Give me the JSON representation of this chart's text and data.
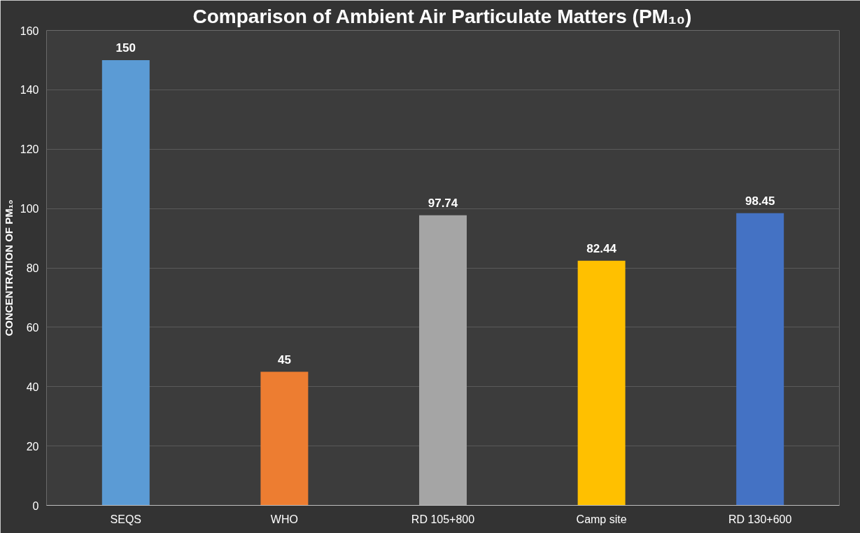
{
  "chart_data": {
    "type": "bar",
    "title": "Comparison of Ambient Air Particulate Matters (PM₁₀)",
    "ylabel": "CONCENTRATION OF PM₁₀",
    "categories": [
      "SEQS",
      "WHO",
      "RD 105+800",
      "Camp site",
      "RD 130+600"
    ],
    "values": [
      150,
      45,
      97.74,
      82.44,
      98.45
    ],
    "colors": [
      "#5b9bd5",
      "#ed7d31",
      "#a5a5a5",
      "#ffc000",
      "#4472c4"
    ],
    "value_labels": [
      "150",
      "45",
      "97.74",
      "82.44",
      "98.45"
    ],
    "ylim": [
      0,
      160
    ],
    "yticks": [
      0,
      20,
      40,
      60,
      80,
      100,
      120,
      140,
      160
    ],
    "grid": "y"
  }
}
